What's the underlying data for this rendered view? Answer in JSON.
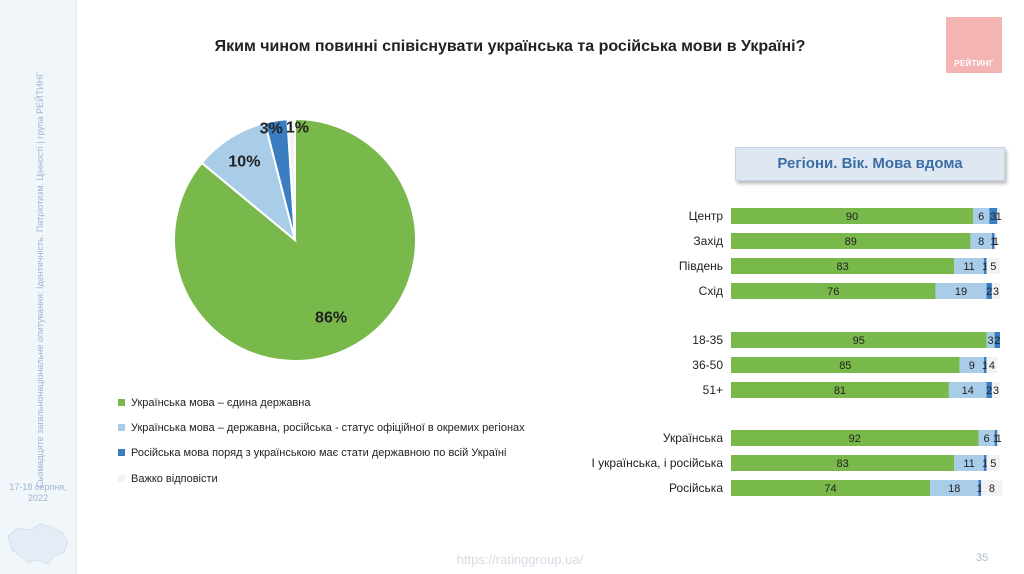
{
  "sidebar": {
    "rotated_text": "Cьомадцяте загальнонаціональне опитування: Ідентичність. Патріотизм. Цінності | група РЕЙТИНГ",
    "date": "17-18 серпня, 2022"
  },
  "title": "Яким чином повинні співіснувати українська та російська мови в Україні?",
  "logo_text": "РЕЙТИНГ",
  "panel_title": "Регіони. Вік. Мова вдома",
  "colors": {
    "green": "#79b84a",
    "light_blue": "#a9cce8",
    "blue": "#3b7dc1",
    "white": "#f2f2f2"
  },
  "legend": [
    "Українська мова – єдина державна",
    "Українська мова – державна, російська - статус офіційної в окремих регіонах",
    "Російська мова поряд з українською має стати державною по всій Україні",
    "Важко відповісти"
  ],
  "chart_data": [
    {
      "type": "pie",
      "categories": [
        "Українська мова – єдина державна",
        "Українська мова – державна, російська - статус офіційної в окремих регіонах",
        "Російська мова поряд з українською має стати державною по всій Україні",
        "Важко відповісти"
      ],
      "values": [
        86,
        10,
        3,
        1
      ],
      "labels": [
        "86%",
        "10%",
        "3%",
        "1%"
      ]
    },
    {
      "type": "bar",
      "orientation": "horizontal",
      "stacked": true,
      "title": "Регіони. Вік. Мова вдома",
      "groups": [
        {
          "categories": [
            "Центр",
            "Захід",
            "Південь",
            "Схід"
          ]
        },
        {
          "categories": [
            "18-35",
            "36-50",
            "51+"
          ]
        },
        {
          "categories": [
            "Українська",
            "І українська, і російська",
            "Російська"
          ]
        }
      ],
      "categories": [
        "Центр",
        "Захід",
        "Південь",
        "Схід",
        "18-35",
        "36-50",
        "51+",
        "Українська",
        "І українська, і російська",
        "Російська"
      ],
      "series": [
        {
          "values": [
            90,
            89,
            83,
            76,
            95,
            85,
            81,
            92,
            83,
            74
          ]
        },
        {
          "values": [
            6,
            8,
            11,
            19,
            3,
            9,
            14,
            6,
            11,
            18
          ]
        },
        {
          "values": [
            3,
            1,
            1,
            2,
            2,
            1,
            2,
            1,
            1,
            1
          ]
        },
        {
          "values": [
            1,
            1,
            5,
            3,
            0,
            4,
            3,
            1,
            5,
            8
          ]
        }
      ]
    }
  ],
  "footer": {
    "url": "https://ratinggroup.ua/",
    "page": "35"
  }
}
